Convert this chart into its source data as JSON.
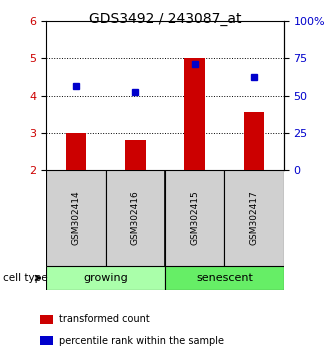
{
  "title": "GDS3492 / 243087_at",
  "samples": [
    "GSM302414",
    "GSM302416",
    "GSM302415",
    "GSM302417"
  ],
  "bar_values": [
    3.0,
    2.8,
    5.0,
    3.55
  ],
  "blue_values": [
    4.25,
    4.1,
    4.85,
    4.5
  ],
  "bar_color": "#cc0000",
  "blue_color": "#0000cc",
  "ylim_left": [
    2,
    6
  ],
  "ylim_right": [
    0,
    100
  ],
  "yticks_left": [
    2,
    3,
    4,
    5,
    6
  ],
  "yticks_right": [
    0,
    25,
    50,
    75,
    100
  ],
  "ytick_labels_right": [
    "0",
    "25",
    "50",
    "75",
    "100%"
  ],
  "groups": [
    {
      "label": "growing",
      "samples": [
        0,
        1
      ],
      "color": "#aaffaa"
    },
    {
      "label": "senescent",
      "samples": [
        2,
        3
      ],
      "color": "#66ee66"
    }
  ],
  "cell_type_label": "cell type",
  "legend": [
    {
      "color": "#cc0000",
      "label": "transformed count"
    },
    {
      "color": "#0000cc",
      "label": "percentile rank within the sample"
    }
  ],
  "background_color": "#ffffff",
  "bar_width": 0.35,
  "title_fontsize": 10
}
